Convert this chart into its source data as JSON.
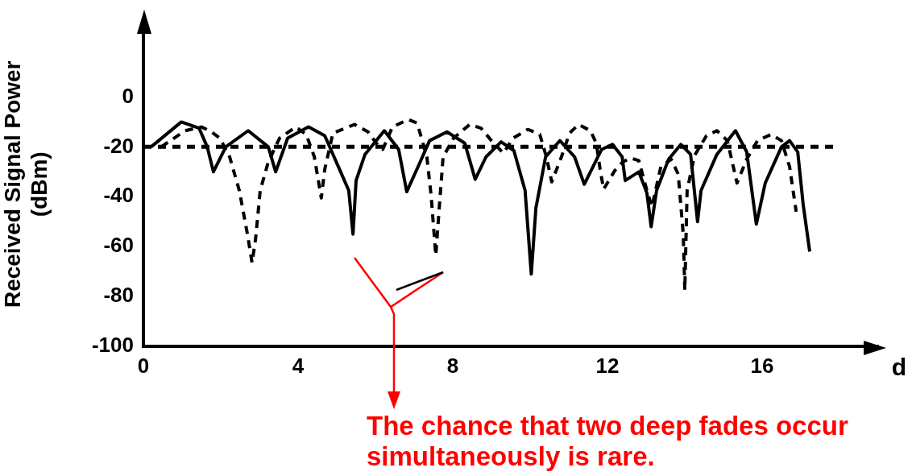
{
  "chart_data": {
    "type": "line",
    "xlabel": "d",
    "ylabel": "Received Signal Power\n(dBm)",
    "xlim": [
      0,
      19
    ],
    "ylim": [
      -100,
      30
    ],
    "xticks": [
      0,
      4,
      8,
      12,
      16
    ],
    "yticks": [
      -100,
      -80,
      -60,
      -40,
      -20,
      0
    ],
    "grid": false,
    "legend": false,
    "marker": "none",
    "series": [
      {
        "color": "#000000",
        "line_style": "solid",
        "x": [
          0.2,
          0.98,
          1.44,
          1.65,
          1.81,
          2.13,
          2.71,
          3.23,
          3.42,
          3.73,
          4.27,
          4.69,
          5.1,
          5.31,
          5.42,
          5.5,
          5.73,
          6.23,
          6.6,
          6.81,
          7.13,
          7.4,
          7.85,
          8.31,
          8.58,
          8.86,
          9.25,
          9.58,
          9.87,
          10.03,
          10.15,
          10.4,
          10.77,
          11.15,
          11.4,
          11.85,
          12.13,
          12.38,
          12.46,
          12.81,
          13.02,
          13.13,
          13.27,
          13.58,
          13.9,
          14.15,
          14.33,
          14.42,
          14.83,
          15.31,
          15.6,
          15.85,
          16.08,
          16.5,
          16.71,
          16.92,
          17.06,
          17.23
        ],
        "values": [
          -20,
          -10,
          -12.5,
          -20,
          -30,
          -20,
          -13.5,
          -20,
          -30,
          -16.5,
          -12,
          -15.5,
          -30,
          -37.5,
          -55,
          -33.5,
          -23,
          -13.5,
          -21,
          -38,
          -27,
          -17.5,
          -14,
          -18.5,
          -33,
          -24,
          -18,
          -21.5,
          -37.5,
          -71,
          -44.5,
          -24,
          -17.5,
          -24,
          -35,
          -21,
          -19,
          -24,
          -33.5,
          -30,
          -38.5,
          -52,
          -37.5,
          -25,
          -19,
          -23,
          -50,
          -37.5,
          -23,
          -13.5,
          -22,
          -51,
          -34.5,
          -20,
          -17.5,
          -22,
          -43,
          -62
        ]
      },
      {
        "color": "#000000",
        "line_style": "dashed",
        "x": [
          0.46,
          1.08,
          1.5,
          1.71,
          1.98,
          2.23,
          2.48,
          2.69,
          2.81,
          2.9,
          3.02,
          3.23,
          3.52,
          3.94,
          4.21,
          4.42,
          4.6,
          4.69,
          4.9,
          5.46,
          5.81,
          6.02,
          6.19,
          6.44,
          6.85,
          7.08,
          7.33,
          7.44,
          7.56,
          7.65,
          7.75,
          8.02,
          8.44,
          8.73,
          9.0,
          9.31,
          9.56,
          9.94,
          10.25,
          10.42,
          10.56,
          10.81,
          11.02,
          11.25,
          11.56,
          11.71,
          11.81,
          11.9,
          12.19,
          12.4,
          12.6,
          12.81,
          13.02,
          13.15,
          13.38,
          13.65,
          13.83,
          13.96,
          14.0,
          14.06,
          14.25,
          14.56,
          14.83,
          15.1,
          15.35,
          15.6,
          15.88,
          16.23,
          16.5,
          16.71,
          16.88
        ],
        "values": [
          -20,
          -13.5,
          -12,
          -13.5,
          -16.5,
          -24,
          -37.5,
          -55,
          -66.5,
          -57,
          -37.5,
          -26,
          -16.5,
          -12,
          -15,
          -24,
          -40.5,
          -29,
          -14.5,
          -11,
          -14,
          -18.5,
          -21,
          -12,
          -9,
          -10.5,
          -24,
          -39.5,
          -63.5,
          -44.5,
          -24,
          -16.5,
          -11,
          -12.5,
          -17.5,
          -22.5,
          -16.5,
          -13,
          -15,
          -24,
          -34,
          -24,
          -14.5,
          -11,
          -13.5,
          -18.5,
          -29,
          -37,
          -29.5,
          -26,
          -24.5,
          -25.5,
          -37.5,
          -44,
          -28,
          -25,
          -31,
          -55,
          -77.5,
          -37.5,
          -23.5,
          -15.5,
          -13.5,
          -17.5,
          -34.5,
          -25,
          -17.5,
          -15,
          -17.5,
          -28,
          -46
        ]
      }
    ],
    "ref_lines": [
      {
        "axis": "y",
        "value": -20,
        "color": "#000000",
        "line_style": "dashed"
      }
    ],
    "annotations": [
      "The chance that two deep fades occur simultaneously is rare."
    ]
  }
}
